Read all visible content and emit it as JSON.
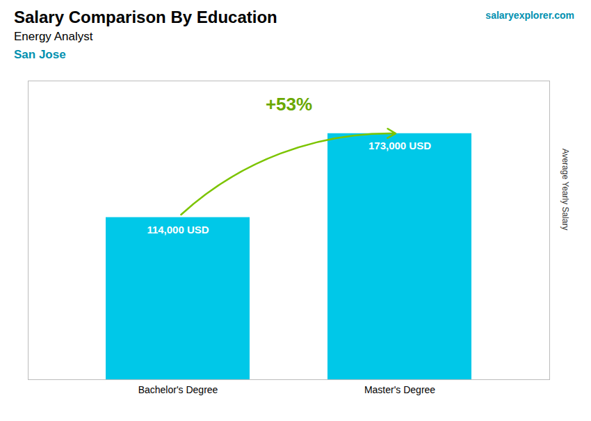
{
  "chart_data": {
    "type": "bar",
    "title": "Salary Comparison By Education",
    "subtitle": [
      "Energy Analyst",
      "San Jose"
    ],
    "annotations": [
      "+53%",
      "salaryexplorer.com"
    ],
    "ylabel": "Average Yearly Salary",
    "categories": [
      "Bachelor's Degree",
      "Master's Degree"
    ],
    "values": [
      114000,
      173000
    ],
    "value_labels": [
      "114,000 USD",
      "173,000 USD"
    ],
    "data_labels": true,
    "color": "#00C8E8",
    "ylim": [
      0,
      210000
    ],
    "tick_labels": "x",
    "grid": false
  }
}
